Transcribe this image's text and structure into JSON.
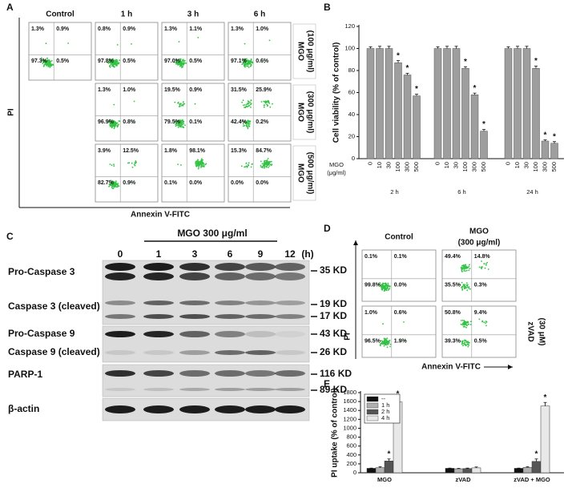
{
  "panel_a": {
    "label": "A",
    "columns": [
      "Control",
      "1 h",
      "3 h",
      "6 h"
    ],
    "rows": [
      {
        "label": [
          "MGO",
          "(100 μg/ml)"
        ],
        "plots": [
          [
            "1.3%",
            "0.9%",
            "97.3%",
            "0.5%"
          ],
          [
            "0.8%",
            "0.9%",
            "97.8%",
            "0.5%"
          ],
          [
            "1.3%",
            "1.1%",
            "97.0%",
            "0.5%"
          ],
          [
            "1.3%",
            "1.0%",
            "97.1%",
            "0.6%"
          ]
        ]
      },
      {
        "label": [
          "MGO",
          "(300 μg/ml)"
        ],
        "plots": [
          null,
          [
            "1.3%",
            "1.0%",
            "96.9%",
            "0.8%"
          ],
          [
            "19.5%",
            "0.9%",
            "79.5%",
            "0.1%"
          ],
          [
            "31.5%",
            "25.9%",
            "42.4%",
            "0.2%"
          ]
        ]
      },
      {
        "label": [
          "MGO",
          "(500 μg/ml)"
        ],
        "plots": [
          null,
          [
            "3.9%",
            "12.5%",
            "82.7%",
            "0.9%"
          ],
          [
            "1.8%",
            "98.1%",
            "0.1%",
            "0.0%"
          ],
          [
            "15.3%",
            "84.7%",
            "0.0%",
            "0.0%"
          ]
        ]
      }
    ],
    "y_label": "PI",
    "x_label": "Annexin V-FITC"
  },
  "panel_c": {
    "label": "C",
    "treatment": "MGO 300 μg/ml",
    "lanes": [
      "0",
      "1",
      "3",
      "6",
      "9",
      "12"
    ],
    "unit": "(h)",
    "proteins": [
      "Pro-Caspase 3",
      "Caspase 3 (cleaved)",
      "Pro-Caspase 9",
      "Caspase 9 (cleaved)",
      "PARP-1",
      "β-actin"
    ],
    "sizes": [
      "35 KD",
      "19 KD",
      "17 KD",
      "43 KD",
      "26 KD",
      "116 KD",
      "89 KD"
    ]
  },
  "panel_d": {
    "label": "D",
    "columns": [
      [
        "Control"
      ],
      [
        "MGO",
        "(300 μg/ml)"
      ]
    ],
    "plots": [
      [
        [
          "0.1%",
          "0.1%",
          "99.8%",
          "0.0%"
        ],
        [
          "49.4%",
          "14.8%",
          "35.5%",
          "0.3%"
        ]
      ],
      [
        [
          "1.0%",
          "0.6%",
          "96.5%",
          "1.9%"
        ],
        [
          "50.8%",
          "9.4%",
          "39.3%",
          "0.5%"
        ]
      ]
    ],
    "row_label": [
      "zVAD",
      "(30 μM)"
    ],
    "y_label": "PI",
    "x_label": "Annexin V-FITC"
  },
  "chart_data": [
    {
      "type": "bar",
      "panel": "B",
      "y_label": "Cell viability (% of control)",
      "x_label": [
        "MGO",
        "(μg/ml)"
      ],
      "categories": [
        "0",
        "10",
        "30",
        "100",
        "300",
        "500"
      ],
      "groups": [
        {
          "name": "2 h",
          "values": [
            100,
            100,
            100,
            87,
            76,
            57
          ],
          "errors": [
            1.5,
            2,
            2,
            2,
            1.5,
            1.5
          ],
          "significant": [
            false,
            false,
            false,
            true,
            true,
            true
          ]
        },
        {
          "name": "6 h",
          "values": [
            100,
            100,
            100,
            82,
            58,
            25
          ],
          "errors": [
            1.5,
            2,
            2,
            1.5,
            1.5,
            1.5
          ],
          "significant": [
            false,
            false,
            false,
            true,
            true,
            true
          ]
        },
        {
          "name": "24 h",
          "values": [
            100,
            100,
            100,
            82,
            16,
            14
          ],
          "errors": [
            1.5,
            2,
            2,
            2,
            1,
            1.5
          ],
          "significant": [
            false,
            false,
            false,
            true,
            true,
            true
          ]
        }
      ],
      "color": "#9e9e9e",
      "marker": "*",
      "ylim": [
        0,
        120
      ],
      "yticks": [
        0,
        20,
        40,
        60,
        80,
        100,
        120
      ]
    },
    {
      "type": "grouped-bar",
      "panel": "E",
      "y_label": "PI uptake (% of control)",
      "categories": [
        "MGO",
        "zVAD",
        "zVAD + MGO"
      ],
      "series": [
        {
          "name": "--",
          "color": "#111111",
          "values": [
            100,
            100,
            100
          ],
          "errors": [
            5,
            5,
            5
          ],
          "significant": [
            false,
            false,
            false
          ]
        },
        {
          "name": "1 h",
          "color": "#b0b0b0",
          "values": [
            115,
            90,
            120
          ],
          "errors": [
            20,
            10,
            15
          ],
          "significant": [
            false,
            false,
            false
          ]
        },
        {
          "name": "2 h",
          "color": "#555555",
          "values": [
            265,
            95,
            255
          ],
          "errors": [
            45,
            10,
            55
          ],
          "significant": [
            true,
            false,
            true
          ]
        },
        {
          "name": "4 h",
          "color": "#e8e8e8",
          "values": [
            1590,
            110,
            1500
          ],
          "errors": [
            70,
            20,
            80
          ],
          "significant": [
            true,
            false,
            true
          ]
        }
      ],
      "marker": "*",
      "ylim": [
        0,
        1800
      ],
      "yticks": [
        0,
        200,
        400,
        600,
        800,
        1000,
        1200,
        1400,
        1600,
        1800
      ],
      "legend": "top-left"
    }
  ]
}
